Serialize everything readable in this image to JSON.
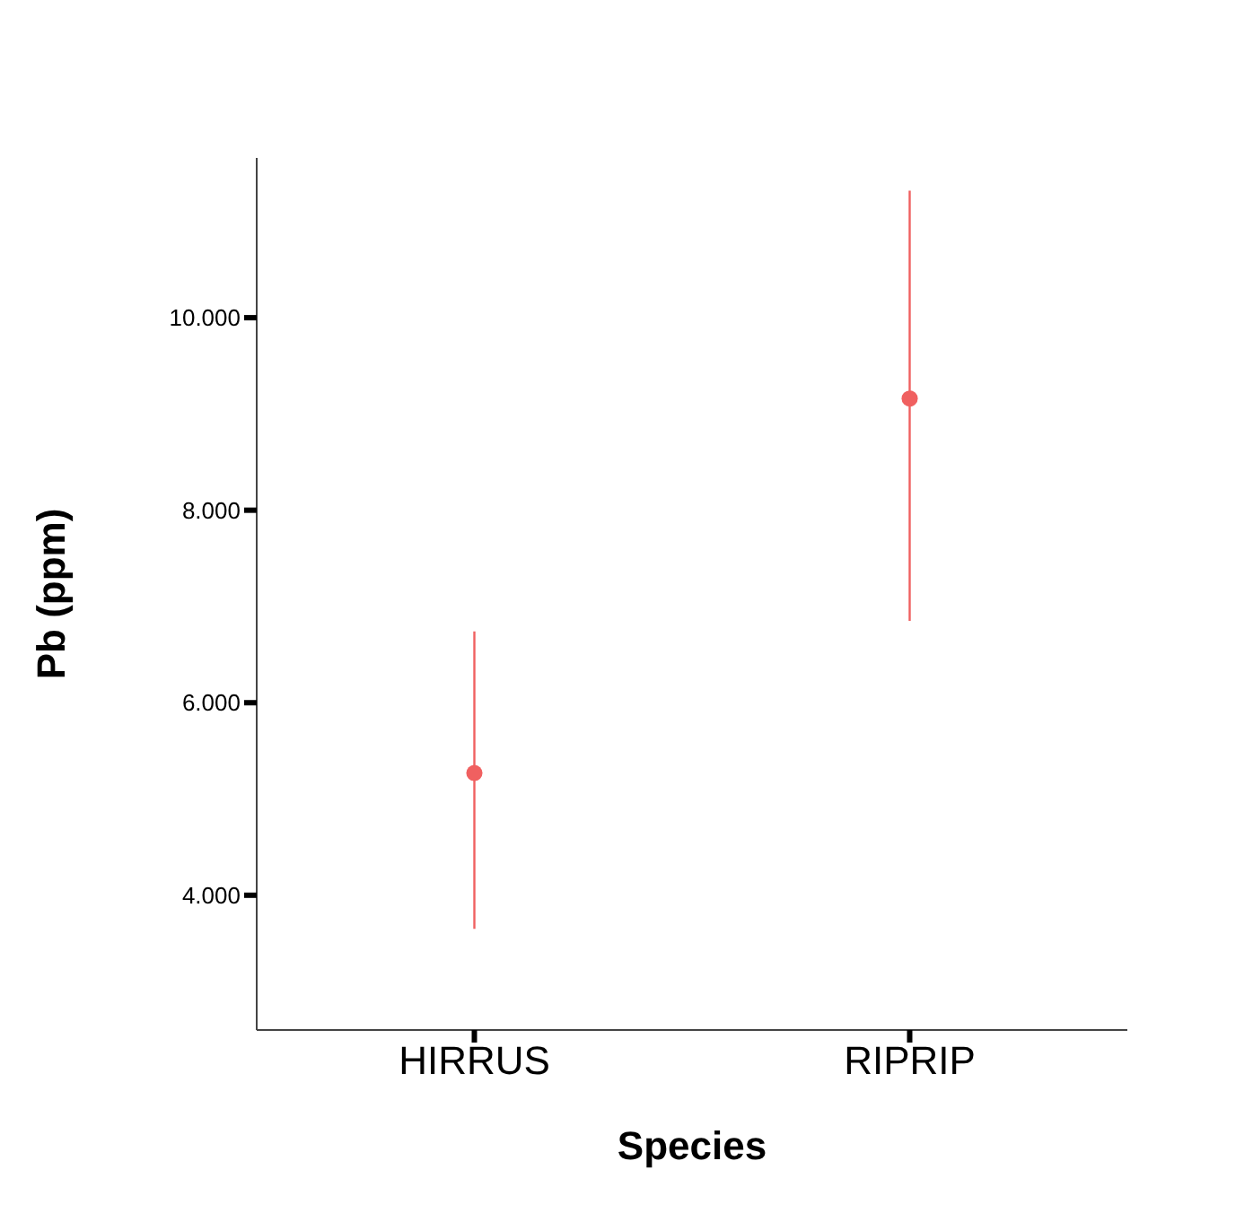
{
  "chart_data": {
    "type": "scatter",
    "xlabel": "Species",
    "ylabel": "Pb (ppm)",
    "categories": [
      "HIRRUS",
      "RIPRIP"
    ],
    "values": [
      5.27,
      9.16
    ],
    "errors": [
      [
        3.65,
        6.74
      ],
      [
        6.85,
        11.32
      ]
    ],
    "color": "#f06060",
    "marker": "circle",
    "grid": false,
    "legend": false,
    "ylim": [
      2.6,
      11.66
    ],
    "yticks": [
      {
        "value": 4,
        "label": "4.000"
      },
      {
        "value": 6,
        "label": "6.000"
      },
      {
        "value": 8,
        "label": "8.000"
      },
      {
        "value": 10,
        "label": "10.000"
      }
    ]
  }
}
